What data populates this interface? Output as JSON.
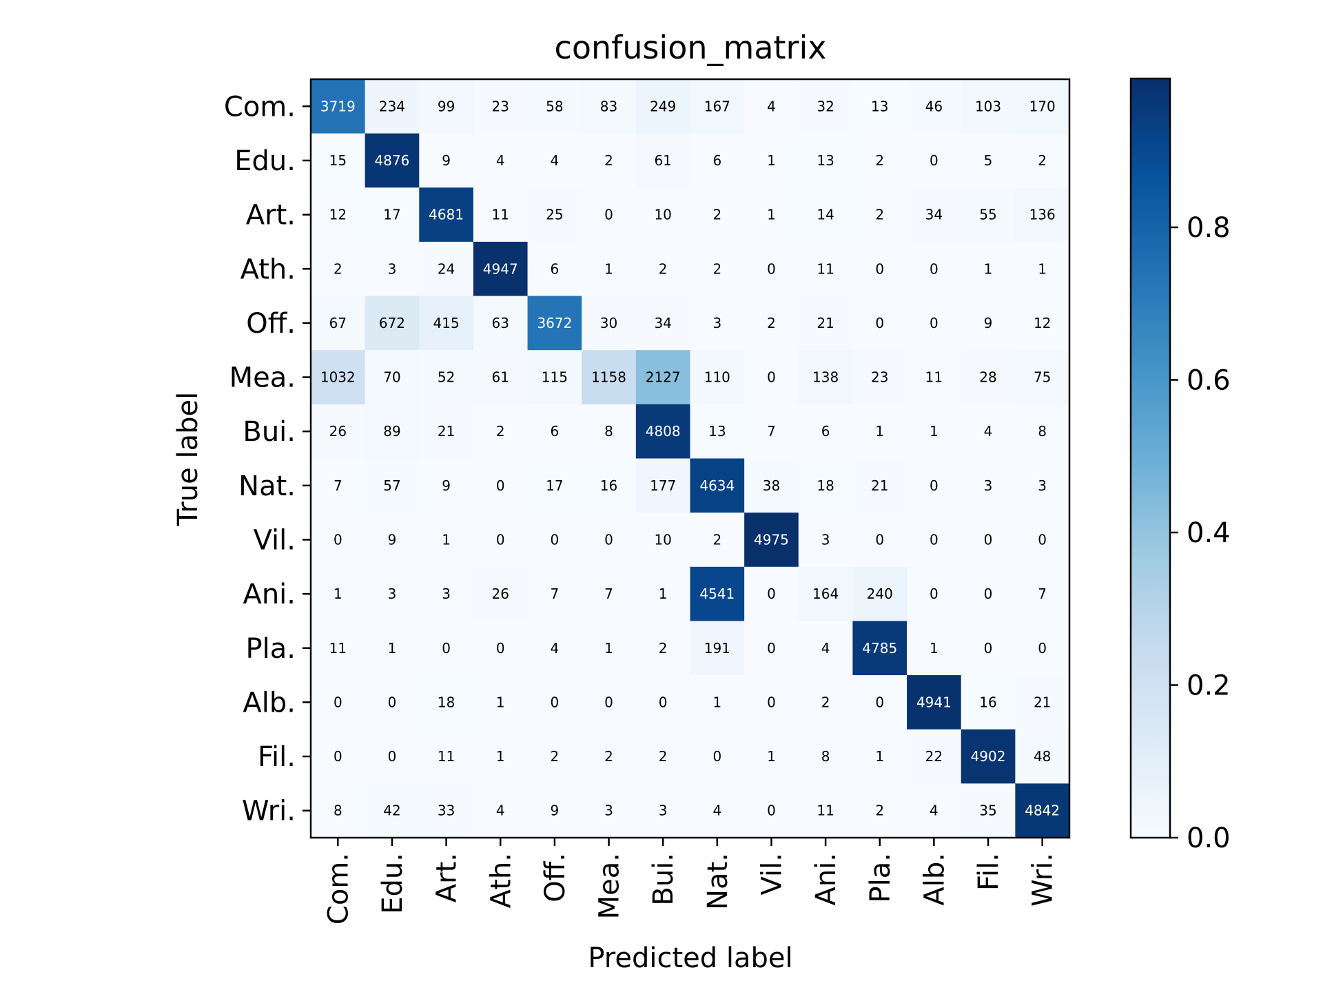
{
  "chart_data": {
    "type": "heatmap",
    "title": "confusion_matrix",
    "xlabel": "Predicted label",
    "ylabel": "True label",
    "x_categories": [
      "Com.",
      "Edu.",
      "Art.",
      "Ath.",
      "Off.",
      "Mea.",
      "Bui.",
      "Nat.",
      "Vil.",
      "Ani.",
      "Pla.",
      "Alb.",
      "Fil.",
      "Wri."
    ],
    "y_categories": [
      "Com.",
      "Edu.",
      "Art.",
      "Ath.",
      "Off.",
      "Mea.",
      "Bui.",
      "Nat.",
      "Vil.",
      "Ani.",
      "Pla.",
      "Alb.",
      "Fil.",
      "Wri."
    ],
    "values": [
      [
        3719,
        234,
        99,
        23,
        58,
        83,
        249,
        167,
        4,
        32,
        13,
        46,
        103,
        170
      ],
      [
        15,
        4876,
        9,
        4,
        4,
        2,
        61,
        6,
        1,
        13,
        2,
        0,
        5,
        2
      ],
      [
        12,
        17,
        4681,
        11,
        25,
        0,
        10,
        2,
        1,
        14,
        2,
        34,
        55,
        136
      ],
      [
        2,
        3,
        24,
        4947,
        6,
        1,
        2,
        2,
        0,
        11,
        0,
        0,
        1,
        1
      ],
      [
        67,
        672,
        415,
        63,
        3672,
        30,
        34,
        3,
        2,
        21,
        0,
        0,
        9,
        12
      ],
      [
        1032,
        70,
        52,
        61,
        115,
        1158,
        2127,
        110,
        0,
        138,
        23,
        11,
        28,
        75
      ],
      [
        26,
        89,
        21,
        2,
        6,
        8,
        4808,
        13,
        7,
        6,
        1,
        1,
        4,
        8
      ],
      [
        7,
        57,
        9,
        0,
        17,
        16,
        177,
        4634,
        38,
        18,
        21,
        0,
        3,
        3
      ],
      [
        0,
        9,
        1,
        0,
        0,
        0,
        10,
        2,
        4975,
        3,
        0,
        0,
        0,
        0
      ],
      [
        1,
        3,
        3,
        26,
        7,
        7,
        1,
        4541,
        0,
        164,
        240,
        0,
        0,
        7
      ],
      [
        11,
        1,
        0,
        0,
        4,
        1,
        2,
        191,
        0,
        4,
        4785,
        1,
        0,
        0
      ],
      [
        0,
        0,
        18,
        1,
        0,
        0,
        0,
        1,
        0,
        2,
        0,
        4941,
        16,
        21
      ],
      [
        0,
        0,
        11,
        1,
        2,
        2,
        2,
        0,
        1,
        8,
        1,
        22,
        4902,
        48
      ],
      [
        8,
        42,
        33,
        4,
        9,
        3,
        3,
        4,
        0,
        11,
        2,
        4,
        35,
        4842
      ]
    ],
    "colormap": "Blues",
    "normalization": "row",
    "colorbar": {
      "min": 0.0,
      "max": 0.995,
      "ticks": [
        0.0,
        0.2,
        0.4,
        0.6,
        0.8
      ],
      "tick_labels": [
        "0.0",
        "0.2",
        "0.4",
        "0.6",
        "0.8"
      ]
    },
    "grid": false
  }
}
